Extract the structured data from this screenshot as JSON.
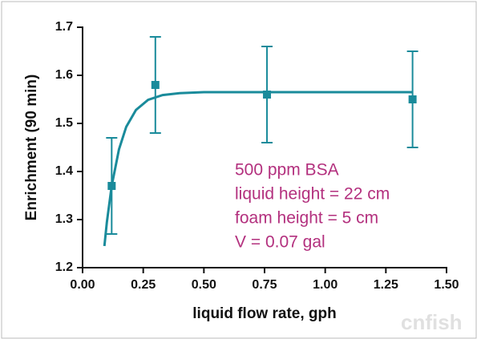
{
  "chart_data": {
    "type": "scatter",
    "x_label": "liquid flow rate, gph",
    "y_label": "Enrichment (90 min)",
    "x": [
      0.12,
      0.3,
      0.76,
      1.36
    ],
    "values": [
      1.37,
      1.58,
      1.56,
      1.55
    ],
    "errors": [
      0.1,
      0.1,
      0.1,
      0.1
    ],
    "color": "#1a8b9b",
    "fit": {
      "x": [
        0.09,
        0.1,
        0.12,
        0.15,
        0.18,
        0.22,
        0.27,
        0.33,
        0.4,
        0.5,
        0.75,
        1.0,
        1.36
      ],
      "values": [
        1.245,
        1.294,
        1.37,
        1.446,
        1.493,
        1.528,
        1.549,
        1.559,
        1.563,
        1.565,
        1.565,
        1.565,
        1.565
      ]
    },
    "xlim": [
      0,
      1.5
    ],
    "ylim": [
      1.2,
      1.7
    ],
    "xticks": [
      {
        "value": 0,
        "label": "0.00"
      },
      {
        "value": 0.25,
        "label": "0.25"
      },
      {
        "value": 0.5,
        "label": "0.50"
      },
      {
        "value": 0.75,
        "label": "0.75"
      },
      {
        "value": 1,
        "label": "1.00"
      },
      {
        "value": 1.25,
        "label": "1.25"
      },
      {
        "value": 1.5,
        "label": "1.50"
      }
    ],
    "yticks": [
      1.2,
      1.3,
      1.4,
      1.5,
      1.6,
      1.7
    ],
    "annotations": [
      "500 ppm BSA",
      "liquid height = 22 cm",
      "foam height = 5 cm",
      "V = 0.07 gal"
    ],
    "watermark": "cnfish"
  }
}
